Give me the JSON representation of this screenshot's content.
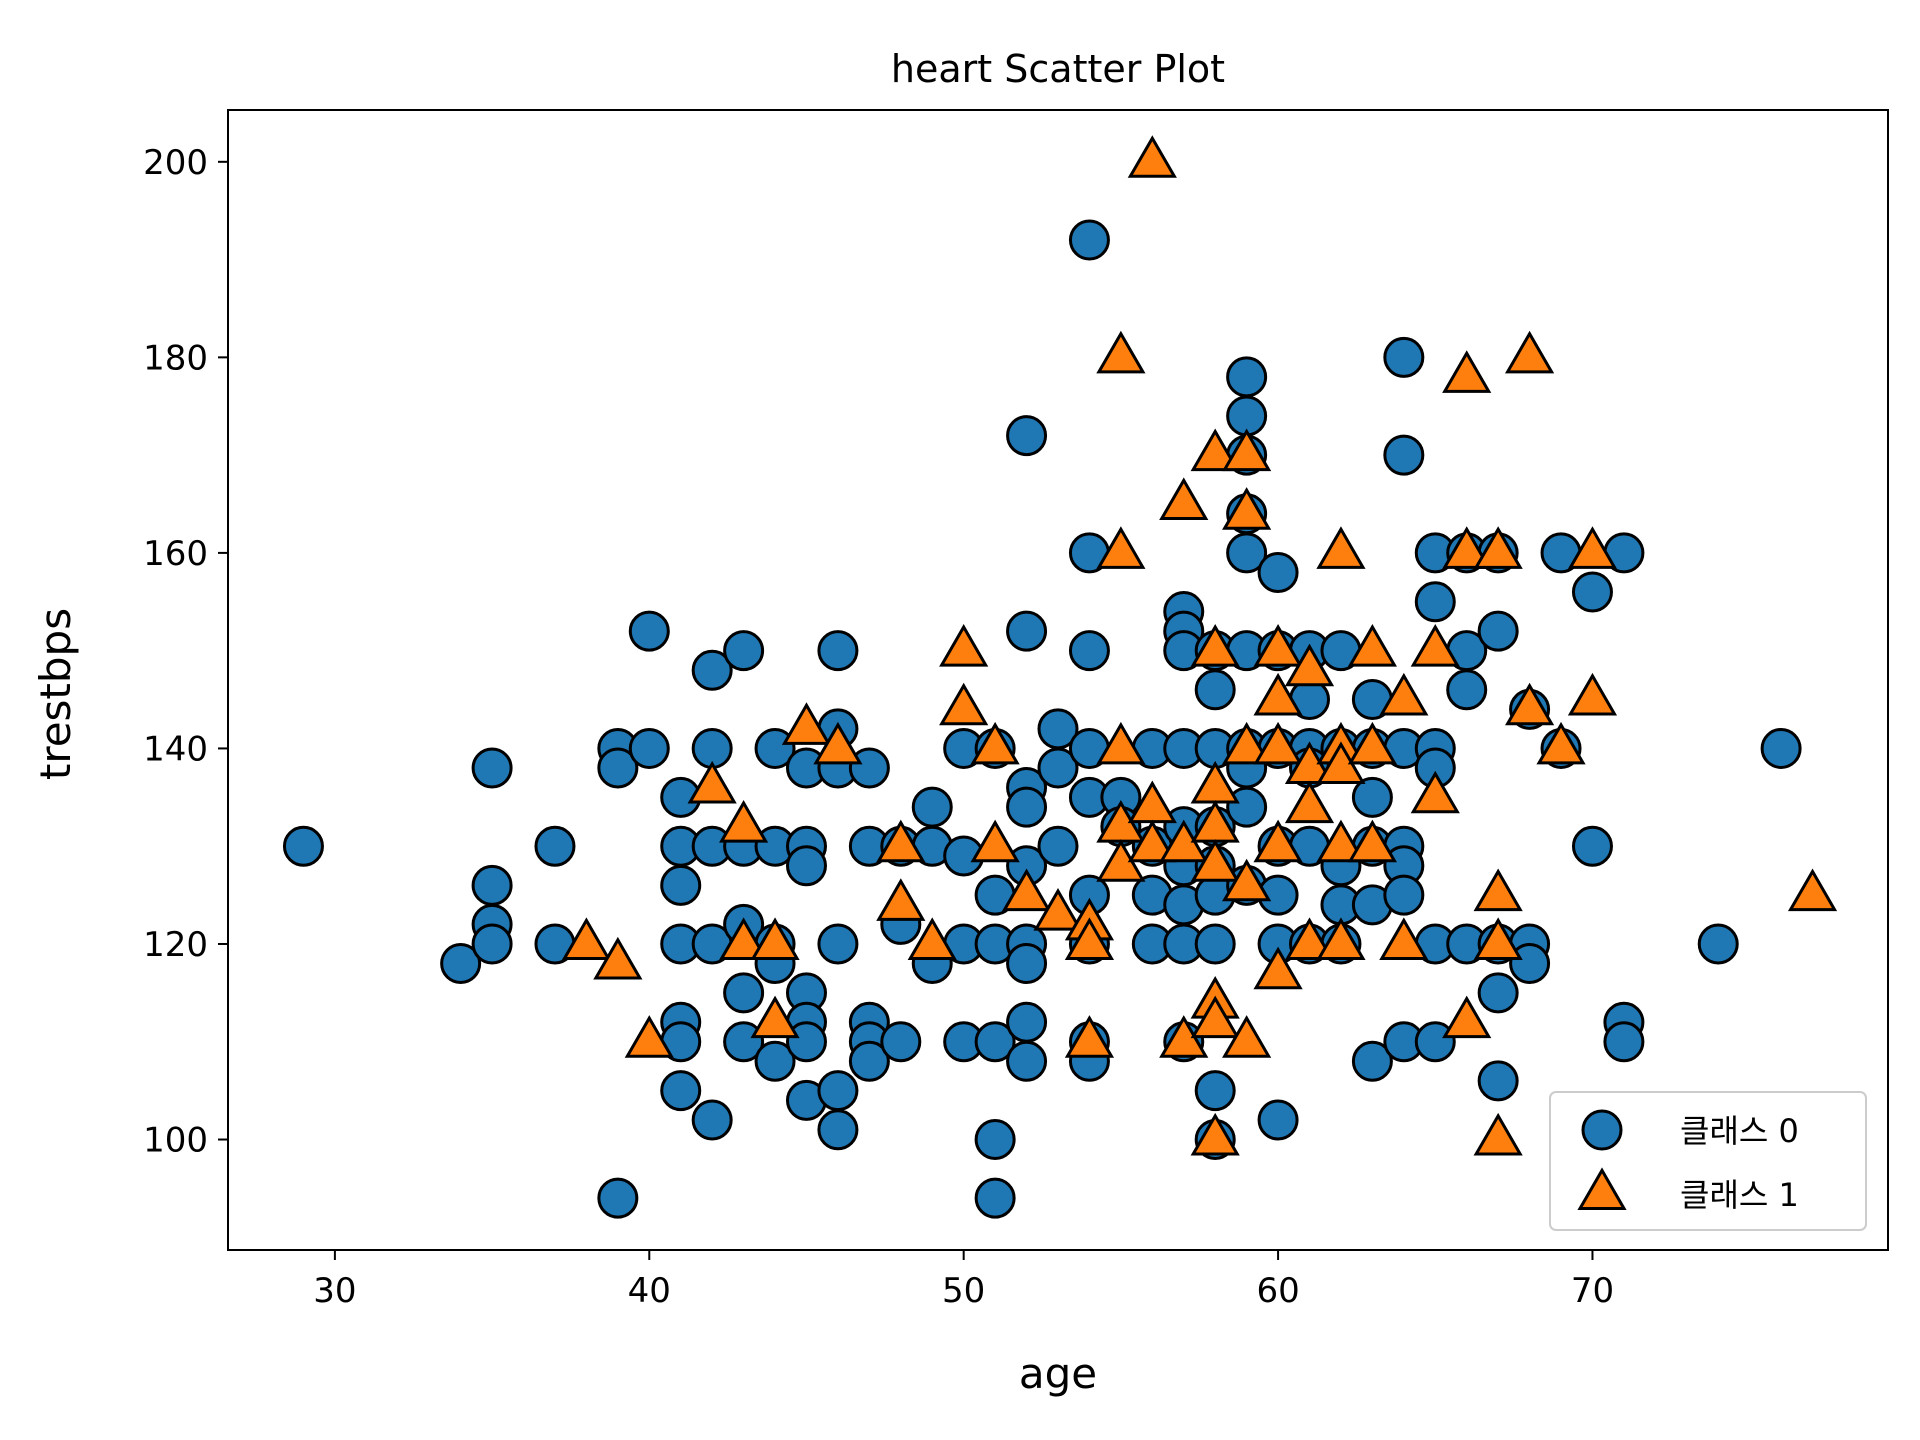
{
  "chart_data": {
    "type": "scatter",
    "title": "heart Scatter Plot",
    "xlabel": "age",
    "ylabel": "trestbps",
    "xlim": [
      26.6,
      79.4
    ],
    "ylim": [
      88.7,
      205.3
    ],
    "xticks": [
      30,
      40,
      50,
      60,
      70
    ],
    "yticks": [
      100,
      120,
      140,
      160,
      180,
      200
    ],
    "grid": false,
    "legend": "lower-right",
    "series": [
      {
        "name": "클래스 0",
        "marker": "circle",
        "color": "#1f77b4",
        "points": [
          [
            29,
            130
          ],
          [
            34,
            118
          ],
          [
            35,
            138
          ],
          [
            35,
            126
          ],
          [
            35,
            122
          ],
          [
            35,
            120
          ],
          [
            37,
            130
          ],
          [
            37,
            120
          ],
          [
            39,
            140
          ],
          [
            39,
            138
          ],
          [
            39,
            94
          ],
          [
            40,
            152
          ],
          [
            40,
            140
          ],
          [
            41,
            135
          ],
          [
            41,
            130
          ],
          [
            41,
            126
          ],
          [
            41,
            120
          ],
          [
            41,
            112
          ],
          [
            41,
            110
          ],
          [
            41,
            105
          ],
          [
            42,
            148
          ],
          [
            42,
            140
          ],
          [
            42,
            130
          ],
          [
            42,
            120
          ],
          [
            42,
            102
          ],
          [
            43,
            150
          ],
          [
            43,
            130
          ],
          [
            43,
            122
          ],
          [
            43,
            115
          ],
          [
            43,
            110
          ],
          [
            44,
            140
          ],
          [
            44,
            130
          ],
          [
            44,
            120
          ],
          [
            44,
            118
          ],
          [
            44,
            108
          ],
          [
            45,
            138
          ],
          [
            45,
            130
          ],
          [
            45,
            128
          ],
          [
            45,
            115
          ],
          [
            45,
            112
          ],
          [
            45,
            110
          ],
          [
            45,
            104
          ],
          [
            46,
            150
          ],
          [
            46,
            142
          ],
          [
            46,
            138
          ],
          [
            46,
            120
          ],
          [
            46,
            105
          ],
          [
            46,
            101
          ],
          [
            47,
            138
          ],
          [
            47,
            130
          ],
          [
            47,
            112
          ],
          [
            47,
            110
          ],
          [
            47,
            108
          ],
          [
            48,
            130
          ],
          [
            48,
            122
          ],
          [
            48,
            110
          ],
          [
            49,
            134
          ],
          [
            49,
            130
          ],
          [
            49,
            118
          ],
          [
            50,
            140
          ],
          [
            50,
            129
          ],
          [
            50,
            120
          ],
          [
            50,
            110
          ],
          [
            51,
            140
          ],
          [
            51,
            125
          ],
          [
            51,
            120
          ],
          [
            51,
            110
          ],
          [
            51,
            100
          ],
          [
            51,
            94
          ],
          [
            52,
            172
          ],
          [
            52,
            152
          ],
          [
            52,
            136
          ],
          [
            52,
            134
          ],
          [
            52,
            128
          ],
          [
            52,
            120
          ],
          [
            52,
            118
          ],
          [
            52,
            112
          ],
          [
            52,
            108
          ],
          [
            53,
            142
          ],
          [
            53,
            138
          ],
          [
            53,
            130
          ],
          [
            54,
            192
          ],
          [
            54,
            160
          ],
          [
            54,
            150
          ],
          [
            54,
            140
          ],
          [
            54,
            135
          ],
          [
            54,
            125
          ],
          [
            54,
            120
          ],
          [
            54,
            110
          ],
          [
            54,
            108
          ],
          [
            55,
            135
          ],
          [
            55,
            132
          ],
          [
            56,
            140
          ],
          [
            56,
            130
          ],
          [
            56,
            125
          ],
          [
            56,
            120
          ],
          [
            57,
            154
          ],
          [
            57,
            152
          ],
          [
            57,
            150
          ],
          [
            57,
            140
          ],
          [
            57,
            132
          ],
          [
            57,
            128
          ],
          [
            57,
            124
          ],
          [
            57,
            120
          ],
          [
            57,
            110
          ],
          [
            58,
            150
          ],
          [
            58,
            146
          ],
          [
            58,
            140
          ],
          [
            58,
            132
          ],
          [
            58,
            128
          ],
          [
            58,
            125
          ],
          [
            58,
            120
          ],
          [
            58,
            105
          ],
          [
            58,
            100
          ],
          [
            59,
            178
          ],
          [
            59,
            174
          ],
          [
            59,
            170
          ],
          [
            59,
            164
          ],
          [
            59,
            160
          ],
          [
            59,
            150
          ],
          [
            59,
            140
          ],
          [
            59,
            138
          ],
          [
            59,
            134
          ],
          [
            59,
            126
          ],
          [
            60,
            158
          ],
          [
            60,
            150
          ],
          [
            60,
            140
          ],
          [
            60,
            130
          ],
          [
            60,
            125
          ],
          [
            60,
            120
          ],
          [
            60,
            102
          ],
          [
            61,
            150
          ],
          [
            61,
            145
          ],
          [
            61,
            140
          ],
          [
            61,
            138
          ],
          [
            61,
            130
          ],
          [
            61,
            120
          ],
          [
            62,
            150
          ],
          [
            62,
            140
          ],
          [
            62,
            128
          ],
          [
            62,
            124
          ],
          [
            62,
            120
          ],
          [
            63,
            145
          ],
          [
            63,
            140
          ],
          [
            63,
            135
          ],
          [
            63,
            130
          ],
          [
            63,
            124
          ],
          [
            63,
            108
          ],
          [
            64,
            180
          ],
          [
            64,
            170
          ],
          [
            64,
            140
          ],
          [
            64,
            130
          ],
          [
            64,
            128
          ],
          [
            64,
            125
          ],
          [
            64,
            110
          ],
          [
            65,
            160
          ],
          [
            65,
            155
          ],
          [
            65,
            140
          ],
          [
            65,
            138
          ],
          [
            65,
            120
          ],
          [
            65,
            110
          ],
          [
            66,
            160
          ],
          [
            66,
            150
          ],
          [
            66,
            146
          ],
          [
            66,
            120
          ],
          [
            67,
            160
          ],
          [
            67,
            152
          ],
          [
            67,
            120
          ],
          [
            67,
            115
          ],
          [
            67,
            106
          ],
          [
            68,
            144
          ],
          [
            68,
            120
          ],
          [
            68,
            118
          ],
          [
            69,
            160
          ],
          [
            69,
            140
          ],
          [
            70,
            156
          ],
          [
            70,
            130
          ],
          [
            71,
            160
          ],
          [
            71,
            112
          ],
          [
            71,
            110
          ],
          [
            74,
            120
          ],
          [
            76,
            140
          ]
        ]
      },
      {
        "name": "클래스 1",
        "marker": "triangle",
        "color": "#ff7f0e",
        "points": [
          [
            38,
            120
          ],
          [
            39,
            118
          ],
          [
            40,
            110
          ],
          [
            42,
            136
          ],
          [
            43,
            132
          ],
          [
            43,
            120
          ],
          [
            44,
            120
          ],
          [
            44,
            112
          ],
          [
            45,
            142
          ],
          [
            46,
            140
          ],
          [
            48,
            130
          ],
          [
            48,
            124
          ],
          [
            49,
            120
          ],
          [
            50,
            150
          ],
          [
            50,
            144
          ],
          [
            51,
            140
          ],
          [
            51,
            130
          ],
          [
            52,
            125
          ],
          [
            53,
            123
          ],
          [
            54,
            122
          ],
          [
            54,
            120
          ],
          [
            54,
            110
          ],
          [
            55,
            180
          ],
          [
            55,
            160
          ],
          [
            55,
            140
          ],
          [
            55,
            132
          ],
          [
            55,
            128
          ],
          [
            56,
            200
          ],
          [
            56,
            134
          ],
          [
            56,
            130
          ],
          [
            57,
            165
          ],
          [
            57,
            130
          ],
          [
            57,
            110
          ],
          [
            58,
            170
          ],
          [
            58,
            150
          ],
          [
            58,
            136
          ],
          [
            58,
            132
          ],
          [
            58,
            128
          ],
          [
            58,
            114
          ],
          [
            58,
            112
          ],
          [
            58,
            100
          ],
          [
            59,
            170
          ],
          [
            59,
            164
          ],
          [
            59,
            140
          ],
          [
            59,
            126
          ],
          [
            59,
            110
          ],
          [
            60,
            150
          ],
          [
            60,
            145
          ],
          [
            60,
            140
          ],
          [
            60,
            130
          ],
          [
            60,
            117
          ],
          [
            61,
            148
          ],
          [
            61,
            138
          ],
          [
            61,
            134
          ],
          [
            61,
            120
          ],
          [
            62,
            160
          ],
          [
            62,
            140
          ],
          [
            62,
            138
          ],
          [
            62,
            130
          ],
          [
            62,
            120
          ],
          [
            63,
            150
          ],
          [
            63,
            140
          ],
          [
            63,
            130
          ],
          [
            64,
            145
          ],
          [
            64,
            120
          ],
          [
            65,
            150
          ],
          [
            65,
            135
          ],
          [
            66,
            178
          ],
          [
            66,
            160
          ],
          [
            66,
            112
          ],
          [
            67,
            160
          ],
          [
            67,
            125
          ],
          [
            67,
            120
          ],
          [
            67,
            100
          ],
          [
            68,
            180
          ],
          [
            68,
            144
          ],
          [
            69,
            140
          ],
          [
            70,
            160
          ],
          [
            70,
            145
          ],
          [
            77,
            125
          ]
        ]
      }
    ]
  }
}
